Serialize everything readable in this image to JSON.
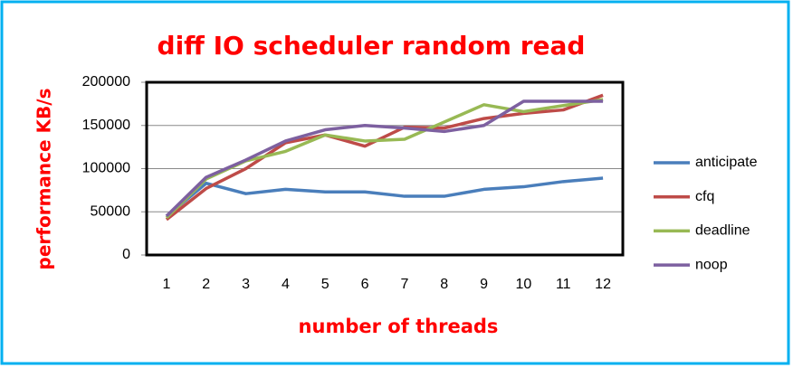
{
  "chart_data": {
    "type": "line",
    "title": "diff IO scheduler random read",
    "x_label": "number of threads",
    "y_label": "performance KB/s",
    "categories": [
      "1",
      "2",
      "3",
      "4",
      "5",
      "6",
      "7",
      "8",
      "9",
      "10",
      "11",
      "12"
    ],
    "series": [
      {
        "name": "anticipate",
        "color": "#4a7ebb",
        "values": [
          45000,
          83000,
          71000,
          76000,
          73000,
          73000,
          68000,
          68000,
          76000,
          79000,
          85000,
          89000
        ]
      },
      {
        "name": "cfq",
        "color": "#be4b48",
        "values": [
          41000,
          77000,
          100000,
          130000,
          139000,
          126000,
          148000,
          147000,
          158000,
          164000,
          168000,
          185000
        ]
      },
      {
        "name": "deadline",
        "color": "#98b954",
        "values": [
          43000,
          88000,
          109000,
          120000,
          139000,
          132000,
          134000,
          154000,
          174000,
          166000,
          173000,
          180000
        ]
      },
      {
        "name": "noop",
        "color": "#7d60a0",
        "values": [
          45000,
          90000,
          110000,
          132000,
          145000,
          150000,
          147000,
          143000,
          150000,
          178000,
          178000,
          178000
        ]
      }
    ],
    "ylim": [
      0,
      200000
    ],
    "yticks": [
      0,
      50000,
      100000,
      150000,
      200000
    ],
    "grid": true,
    "legend": "right"
  }
}
